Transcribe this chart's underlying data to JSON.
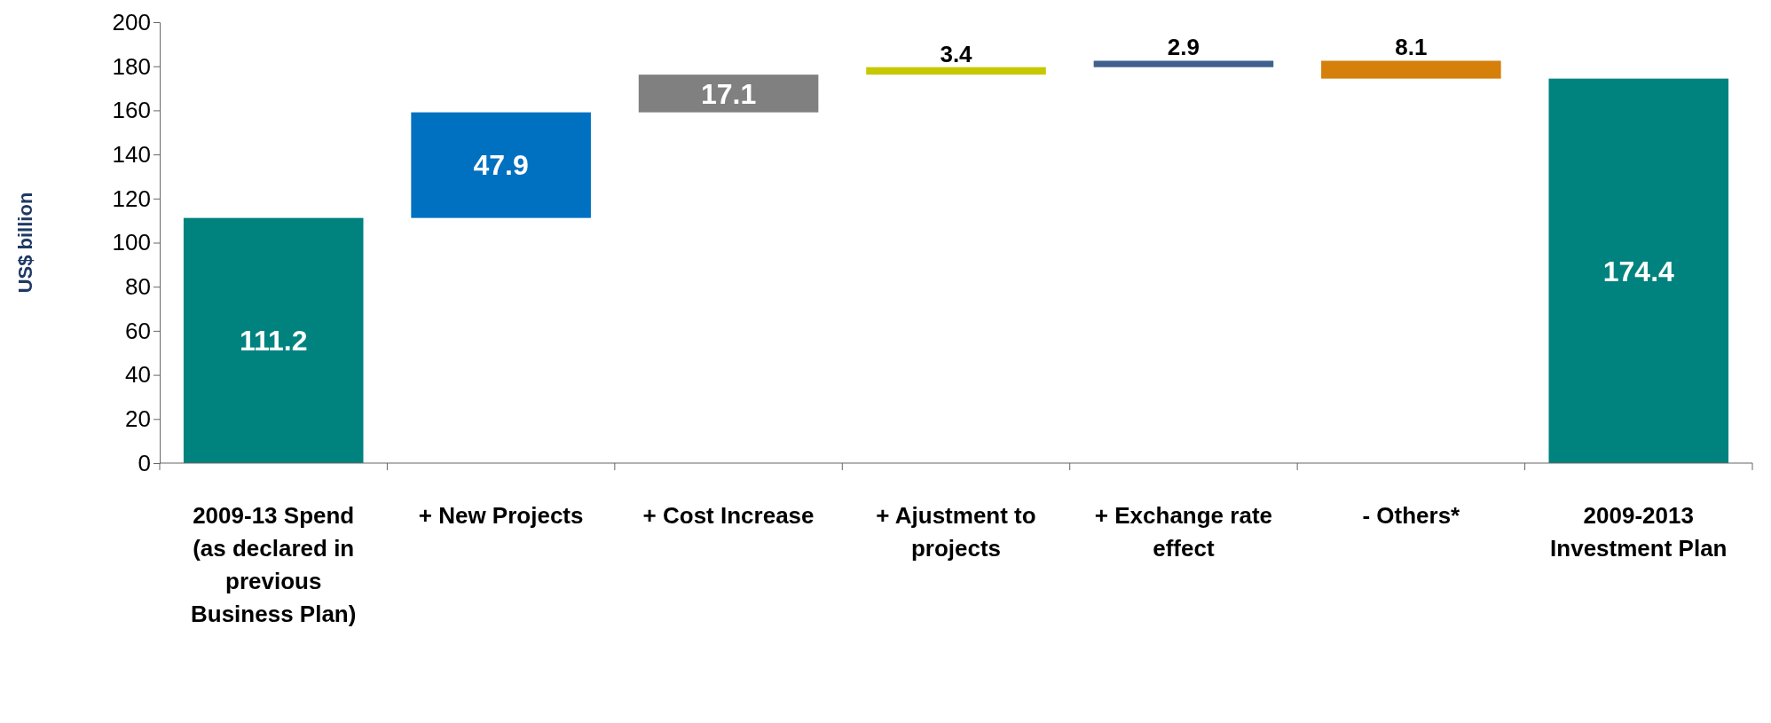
{
  "chart_data": {
    "type": "bar",
    "ylabel": "US$ billion",
    "categories": [
      "2009-13 Spend (as declared in previous Business Plan)",
      "+ New Projects",
      "+ Cost Increase",
      "+ Ajustment to projects",
      "+ Exchange rate effect",
      "- Others*",
      "2009-2013 Investment Plan"
    ],
    "values": [
      111.2,
      47.9,
      17.1,
      3.4,
      2.9,
      -8.1,
      174.4
    ],
    "base": [
      0,
      111.2,
      159.1,
      176.2,
      179.6,
      182.5,
      0
    ],
    "colors": [
      "#00827f",
      "#0070c0",
      "#808080",
      "#c8c800",
      "#3f5f8f",
      "#d4800a",
      "#00827f"
    ],
    "value_labels": [
      "111.2",
      "47.9",
      "17.1",
      "3.4",
      "2.9",
      "8.1",
      "174.4"
    ],
    "ylim": [
      0,
      200
    ],
    "yticks": [
      0,
      20,
      40,
      60,
      80,
      100,
      120,
      140,
      160,
      180,
      200
    ]
  }
}
